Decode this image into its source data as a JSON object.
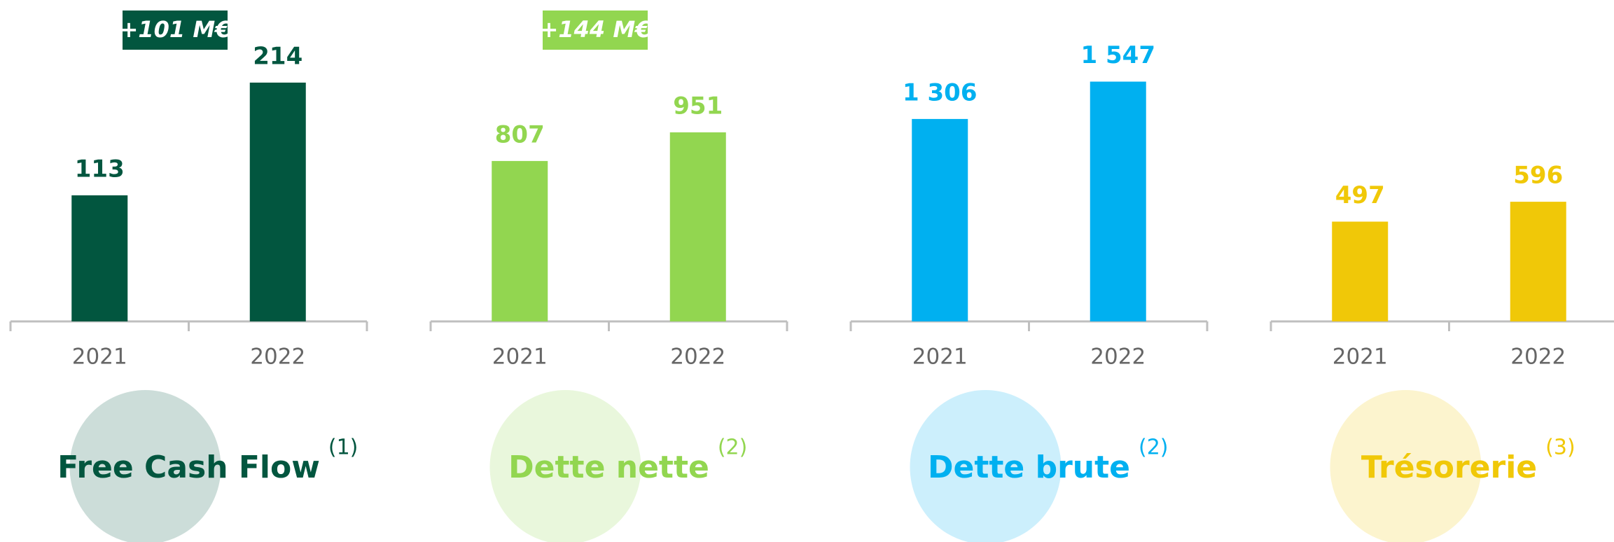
{
  "chart_data": [
    {
      "type": "bar",
      "title": "Free Cash Flow",
      "footnote": "(1)",
      "annotation": "+101 M€",
      "categories": [
        "2021",
        "2022"
      ],
      "values": [
        113,
        214
      ],
      "color": "#02563f",
      "ylim": [
        0,
        251
      ]
    },
    {
      "type": "bar",
      "title": "Dette nette",
      "footnote": "(2)",
      "annotation": "+144 M€",
      "categories": [
        "2021",
        "2022"
      ],
      "values": [
        807,
        951
      ],
      "color": "#92d650",
      "ylim": [
        0,
        1409
      ]
    },
    {
      "type": "bar",
      "title": "Dette brute",
      "footnote": "(2)",
      "categories": [
        "2021",
        "2022"
      ],
      "values": [
        1306,
        1547
      ],
      "value_labels": [
        "1 306",
        "1 547"
      ],
      "color": "#00b0f0",
      "ylim": [
        0,
        1807
      ]
    },
    {
      "type": "bar",
      "title": "Trésorerie",
      "footnote": "(3)",
      "categories": [
        "2021",
        "2022"
      ],
      "values": [
        497,
        596
      ],
      "color": "#f0c808",
      "ylim": [
        0,
        1395
      ]
    }
  ]
}
